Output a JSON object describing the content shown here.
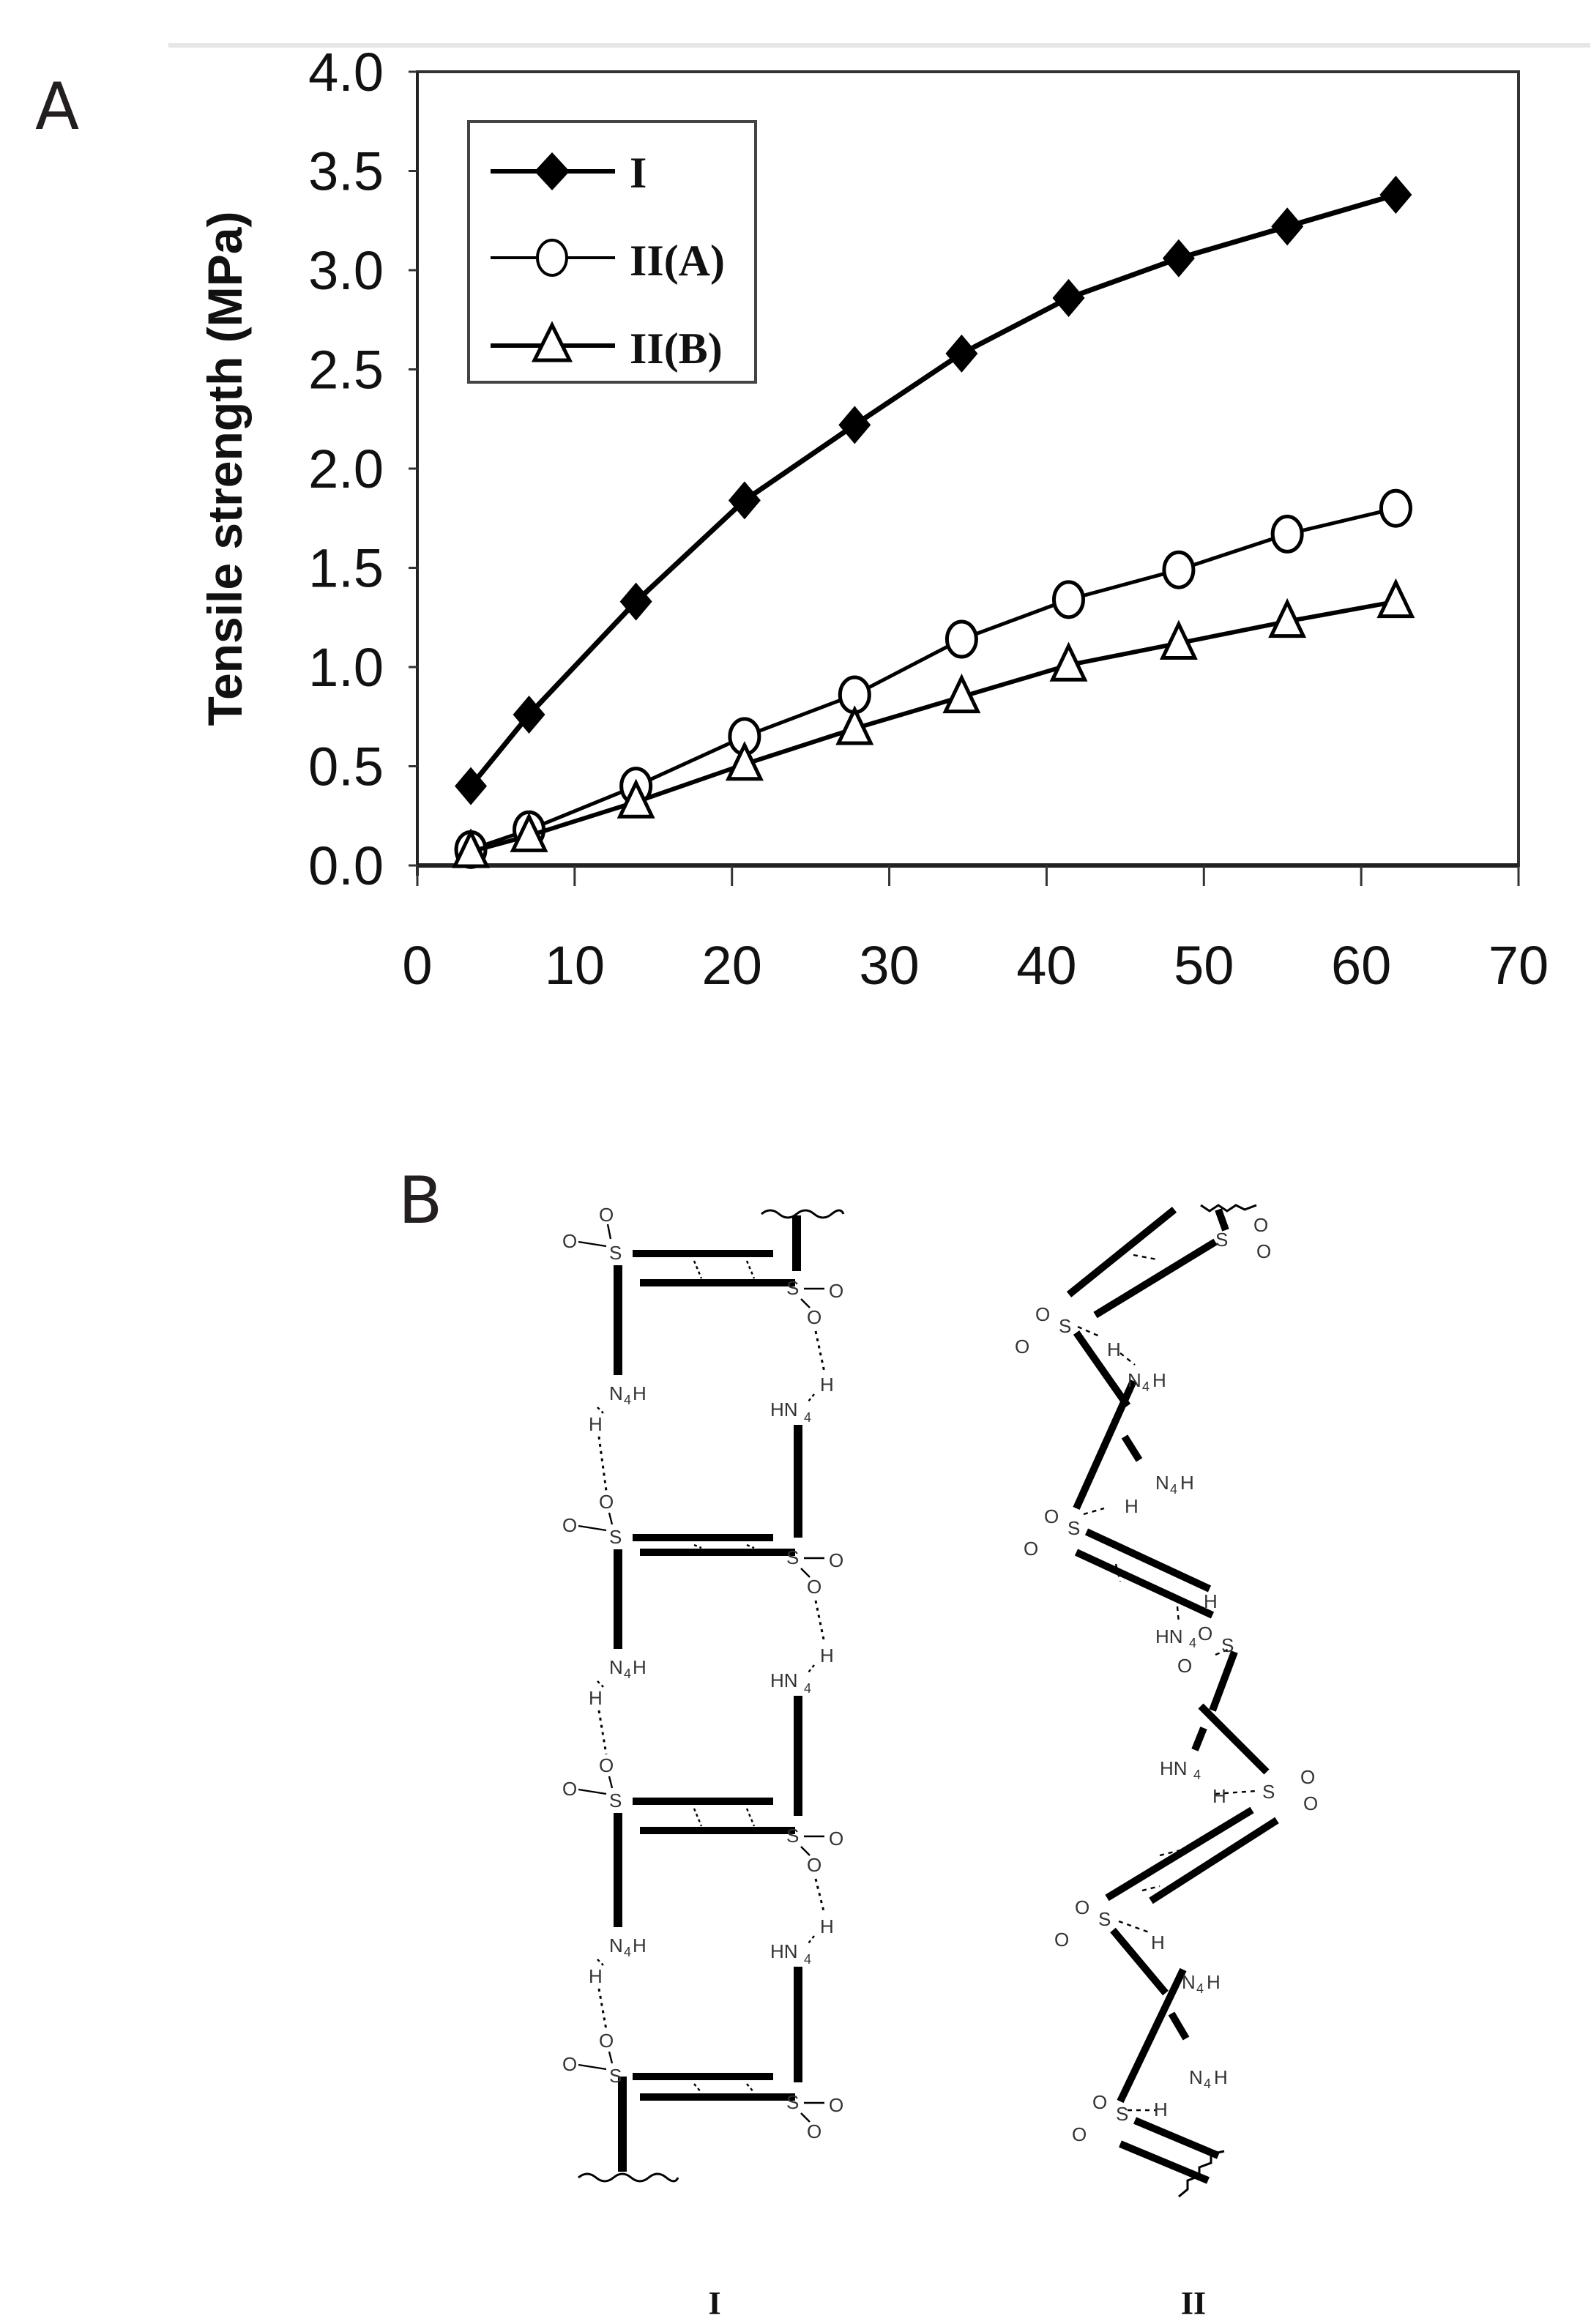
{
  "panels": {
    "a_label": "A",
    "b_label": "B"
  },
  "chart_data": {
    "type": "line",
    "title": "",
    "xlabel": "",
    "ylabel": "Tensile strength (MPa)",
    "xlim": [
      0,
      70
    ],
    "ylim": [
      0.0,
      4.0
    ],
    "x_ticks": [
      "0",
      "10",
      "20",
      "30",
      "40",
      "50",
      "60",
      "70"
    ],
    "y_ticks": [
      "0.0",
      "0.5",
      "1.0",
      "1.5",
      "2.0",
      "2.5",
      "3.0",
      "3.5",
      "4.0"
    ],
    "grid": false,
    "legend_position": "upper-left (inside)",
    "x": [
      3.4,
      7.1,
      13.9,
      20.8,
      27.8,
      34.6,
      41.4,
      48.4,
      55.3,
      62.2
    ],
    "series": [
      {
        "name": "I",
        "marker": "filled-diamond",
        "values": [
          0.4,
          0.76,
          1.33,
          1.84,
          2.22,
          2.58,
          2.86,
          3.06,
          3.22,
          3.38
        ]
      },
      {
        "name": "II(A)",
        "marker": "open-circle",
        "values": [
          0.08,
          0.18,
          0.4,
          0.65,
          0.86,
          1.14,
          1.34,
          1.49,
          1.67,
          1.8
        ]
      },
      {
        "name": "II(B)",
        "marker": "open-triangle",
        "values": [
          0.07,
          0.15,
          0.32,
          0.51,
          0.69,
          0.85,
          1.01,
          1.12,
          1.23,
          1.33
        ]
      }
    ]
  },
  "structures": {
    "labels": [
      "I",
      "II"
    ],
    "atoms": {
      "sulfur": "S",
      "oxygen": "O",
      "hydrogen": "H",
      "amine_left": "N",
      "amine_right": "HN",
      "subscript": "4"
    }
  },
  "colors": {
    "ink": "#000000",
    "frame": "#333333",
    "background": "#ffffff"
  }
}
